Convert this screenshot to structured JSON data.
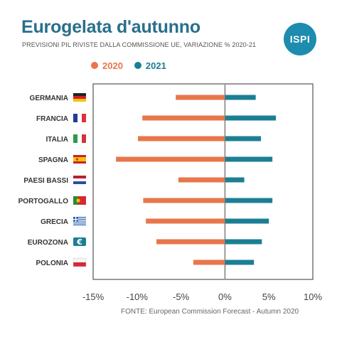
{
  "header": {
    "title": "Eurogelata d'autunno",
    "subtitle": "PREVISIONI PIL RIVISTE DALLA COMMISSIONE UE, VARIAZIONE % 2020-21",
    "logo_text": "ISPI"
  },
  "footer": {
    "source": "FONTE: European Commission Forecast - Autumn 2020"
  },
  "colors": {
    "series_2020": "#e8764a",
    "series_2021": "#1b7f94",
    "title": "#2a6f8c"
  },
  "chart_data": {
    "type": "bar",
    "orientation": "horizontal",
    "categories": [
      "GERMANIA",
      "FRANCIA",
      "ITALIA",
      "SPAGNA",
      "PAESI BASSI",
      "PORTOGALLO",
      "GRECIA",
      "EUROZONA",
      "POLONIA"
    ],
    "flags": [
      "germany-flag-icon",
      "france-flag-icon",
      "italy-flag-icon",
      "spain-flag-icon",
      "netherlands-flag-icon",
      "portugal-flag-icon",
      "greece-flag-icon",
      "euro-flag-icon",
      "poland-flag-icon"
    ],
    "series": [
      {
        "name": "2020",
        "color": "#e8764a",
        "values": [
          -5.6,
          -9.4,
          -9.9,
          -12.4,
          -5.3,
          -9.3,
          -9.0,
          -7.8,
          -3.6
        ]
      },
      {
        "name": "2021",
        "color": "#1b7f94",
        "values": [
          3.5,
          5.8,
          4.1,
          5.4,
          2.2,
          5.4,
          5.0,
          4.2,
          3.3
        ]
      }
    ],
    "xlim": [
      -15,
      10
    ],
    "xticks": [
      "-15%",
      "-10%",
      "-5%",
      "0%",
      "5%",
      "10%"
    ],
    "tick_values": [
      -15,
      -10,
      -5,
      0,
      5,
      10
    ],
    "legend": "top-left"
  }
}
